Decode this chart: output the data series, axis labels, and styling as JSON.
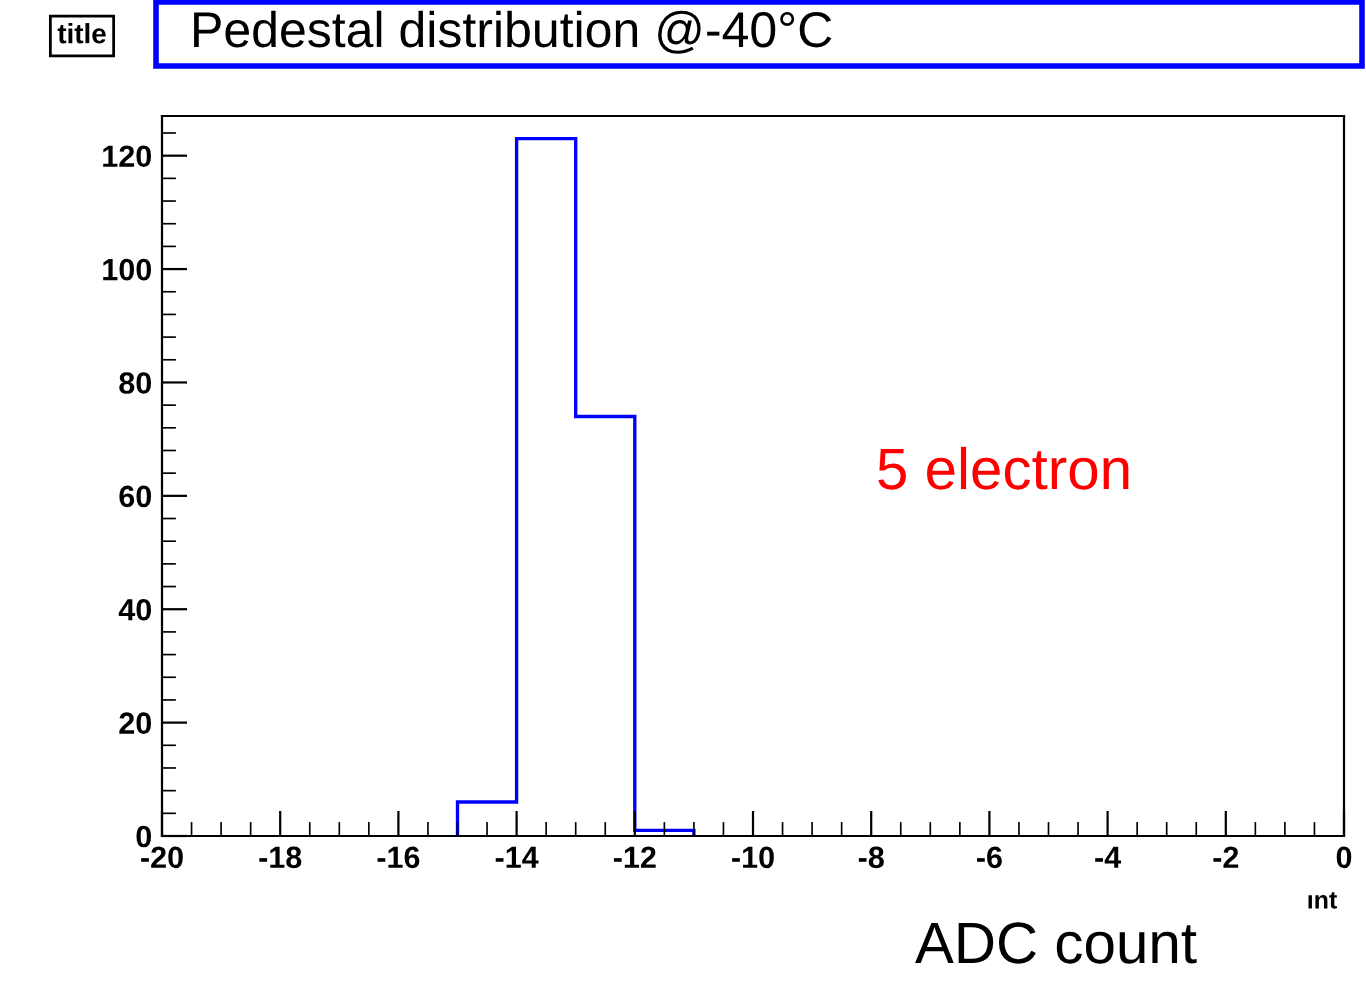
{
  "chart_data": {
    "type": "histogram",
    "title": "Pedestal distribution @-40°C",
    "xlabel": "ADC count",
    "annotations": [
      "title",
      "5 electron",
      "ınt"
    ],
    "bins": [
      -15,
      -14,
      -13,
      -12,
      -11
    ],
    "values": [
      6,
      123,
      74,
      1
    ],
    "color": "#0000ff",
    "xlim": [
      -20,
      0
    ],
    "xticks": [
      -20,
      -18,
      -16,
      -14,
      -12,
      -10,
      -8,
      -6,
      -4,
      -2,
      0
    ],
    "ylim": [
      0,
      127
    ],
    "yticks": [
      0,
      20,
      40,
      60,
      80,
      100,
      120
    ],
    "grid": false,
    "legend": false
  }
}
